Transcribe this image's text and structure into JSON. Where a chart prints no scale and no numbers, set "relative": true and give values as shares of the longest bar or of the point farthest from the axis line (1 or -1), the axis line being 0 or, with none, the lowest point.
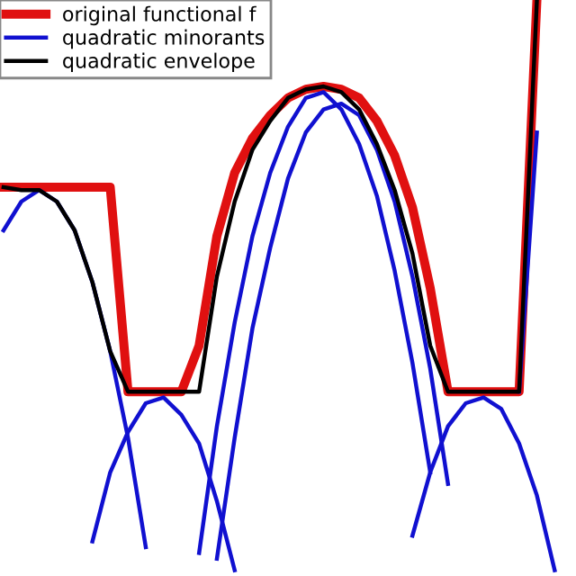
{
  "chart_data": {
    "type": "line",
    "relative": true,
    "legend": "top left",
    "marker": "none",
    "line_style": "solid",
    "categories": [
      null,
      null,
      null,
      null,
      null,
      null,
      null,
      null,
      null,
      null,
      null,
      null,
      null,
      null,
      null,
      null,
      null,
      null,
      null,
      null,
      null,
      null,
      null,
      null,
      null,
      null,
      null,
      null,
      null,
      null,
      null,
      null
    ],
    "series": [
      {
        "name": "original functional f",
        "color": "#e01010",
        "values": [
          0.675,
          0.675,
          0.675,
          0.675,
          0.675,
          0.675,
          0.675,
          0.32,
          0.32,
          0.32,
          0.32,
          0.4,
          0.59,
          0.7,
          0.76,
          0.8,
          0.83,
          0.845,
          0.85,
          0.845,
          0.83,
          0.79,
          0.73,
          0.64,
          0.5,
          0.32,
          0.32,
          0.32,
          0.32,
          0.32,
          1.0,
          null
        ]
      },
      {
        "name": "quadratic minorants",
        "color": "#1010d0",
        "values": [
          0.6,
          0.65,
          0.67,
          0.65,
          0.6,
          0.51,
          0.39,
          0.24,
          0.05,
          null,
          null,
          null,
          null,
          null,
          null,
          null,
          null,
          null,
          null,
          null,
          null,
          null,
          null,
          null,
          null,
          null,
          null,
          null,
          null,
          null,
          null,
          null
        ]
      },
      {
        "color": "#1010d0",
        "values": [
          null,
          null,
          null,
          null,
          null,
          0.06,
          0.18,
          0.25,
          0.3,
          0.31,
          0.28,
          0.23,
          0.13,
          0.01,
          null,
          null,
          null,
          null,
          null,
          null,
          null,
          null,
          null,
          null,
          null,
          null,
          null,
          null,
          null,
          null,
          null,
          null
        ]
      },
      {
        "color": "#1010d0",
        "values": [
          null,
          null,
          null,
          null,
          null,
          null,
          null,
          null,
          null,
          null,
          null,
          0.04,
          0.26,
          0.44,
          0.59,
          0.7,
          0.78,
          0.83,
          0.84,
          0.81,
          0.75,
          0.66,
          0.53,
          0.37,
          0.18,
          null,
          null,
          null,
          null,
          null,
          null,
          null
        ]
      },
      {
        "color": "#1010d0",
        "values": [
          null,
          null,
          null,
          null,
          null,
          null,
          null,
          null,
          null,
          null,
          null,
          null,
          0.03,
          0.24,
          0.43,
          0.57,
          0.69,
          0.77,
          0.81,
          0.82,
          0.8,
          0.74,
          0.65,
          0.52,
          0.36,
          0.16,
          null,
          null,
          null,
          null,
          null,
          null
        ]
      },
      {
        "color": "#1010d0",
        "values": [
          null,
          null,
          null,
          null,
          null,
          null,
          null,
          null,
          null,
          null,
          null,
          null,
          null,
          null,
          null,
          null,
          null,
          null,
          null,
          null,
          null,
          null,
          null,
          0.07,
          0.18,
          0.26,
          0.3,
          0.31,
          0.29,
          0.23,
          0.14,
          0.01
        ]
      },
      {
        "color": "#1010d0",
        "values": [
          null,
          null,
          null,
          null,
          null,
          null,
          null,
          null,
          null,
          null,
          null,
          null,
          null,
          null,
          null,
          null,
          null,
          null,
          null,
          null,
          null,
          null,
          null,
          null,
          null,
          null,
          null,
          null,
          null,
          0.32,
          0.77,
          null
        ]
      },
      {
        "name": "quadratic envelope",
        "color": "#000000",
        "values": [
          0.675,
          0.67,
          0.67,
          0.65,
          0.6,
          0.51,
          0.39,
          0.32,
          0.32,
          0.32,
          0.32,
          0.32,
          0.52,
          0.65,
          0.74,
          0.79,
          0.83,
          0.845,
          0.85,
          0.84,
          0.81,
          0.75,
          0.67,
          0.56,
          0.4,
          0.32,
          0.32,
          0.32,
          0.32,
          0.32,
          1.0,
          null
        ]
      }
    ]
  }
}
